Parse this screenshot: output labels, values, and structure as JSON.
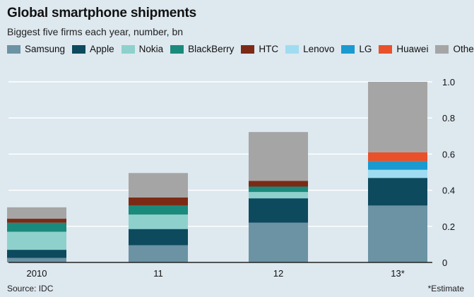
{
  "header": {
    "title": "Global smartphone shipments",
    "subtitle": "Biggest five firms each year, number, bn"
  },
  "footer": {
    "source": "Source: IDC",
    "note": "*Estimate"
  },
  "chart_data": {
    "type": "bar",
    "stacked": true,
    "categories": [
      "2010",
      "11",
      "12",
      "13*"
    ],
    "y_axis_position": "right",
    "ylim": [
      0,
      1.0
    ],
    "yticks": [
      0,
      0.2,
      0.4,
      0.6,
      0.8,
      1.0
    ],
    "ytick_labels": [
      "0",
      "0.2",
      "0.4",
      "0.6",
      "0.8",
      "1.0"
    ],
    "grid": true,
    "legend_position": "top",
    "series": [
      {
        "name": "Samsung",
        "color": "#6b93a4",
        "values": [
          0.025,
          0.095,
          0.22,
          0.315
        ]
      },
      {
        "name": "Apple",
        "color": "#0d4a5e",
        "values": [
          0.045,
          0.09,
          0.135,
          0.153
        ]
      },
      {
        "name": "Nokia",
        "color": "#8ed1cc",
        "values": [
          0.1,
          0.08,
          0.035,
          0
        ]
      },
      {
        "name": "BlackBerry",
        "color": "#1a8a7c",
        "values": [
          0.05,
          0.05,
          0.03,
          0
        ]
      },
      {
        "name": "HTC",
        "color": "#7c2a16",
        "values": [
          0.022,
          0.045,
          0.032,
          0
        ]
      },
      {
        "name": "Lenovo",
        "color": "#9fdcf2",
        "values": [
          0,
          0,
          0,
          0.045
        ]
      },
      {
        "name": "LG",
        "color": "#1a9ad0",
        "values": [
          0,
          0,
          0,
          0.048
        ]
      },
      {
        "name": "Huawei",
        "color": "#e8512a",
        "values": [
          0,
          0,
          0,
          0.049
        ]
      },
      {
        "name": "Others",
        "color": "#a5a5a5",
        "values": [
          0.063,
          0.135,
          0.27,
          0.39
        ]
      }
    ]
  }
}
